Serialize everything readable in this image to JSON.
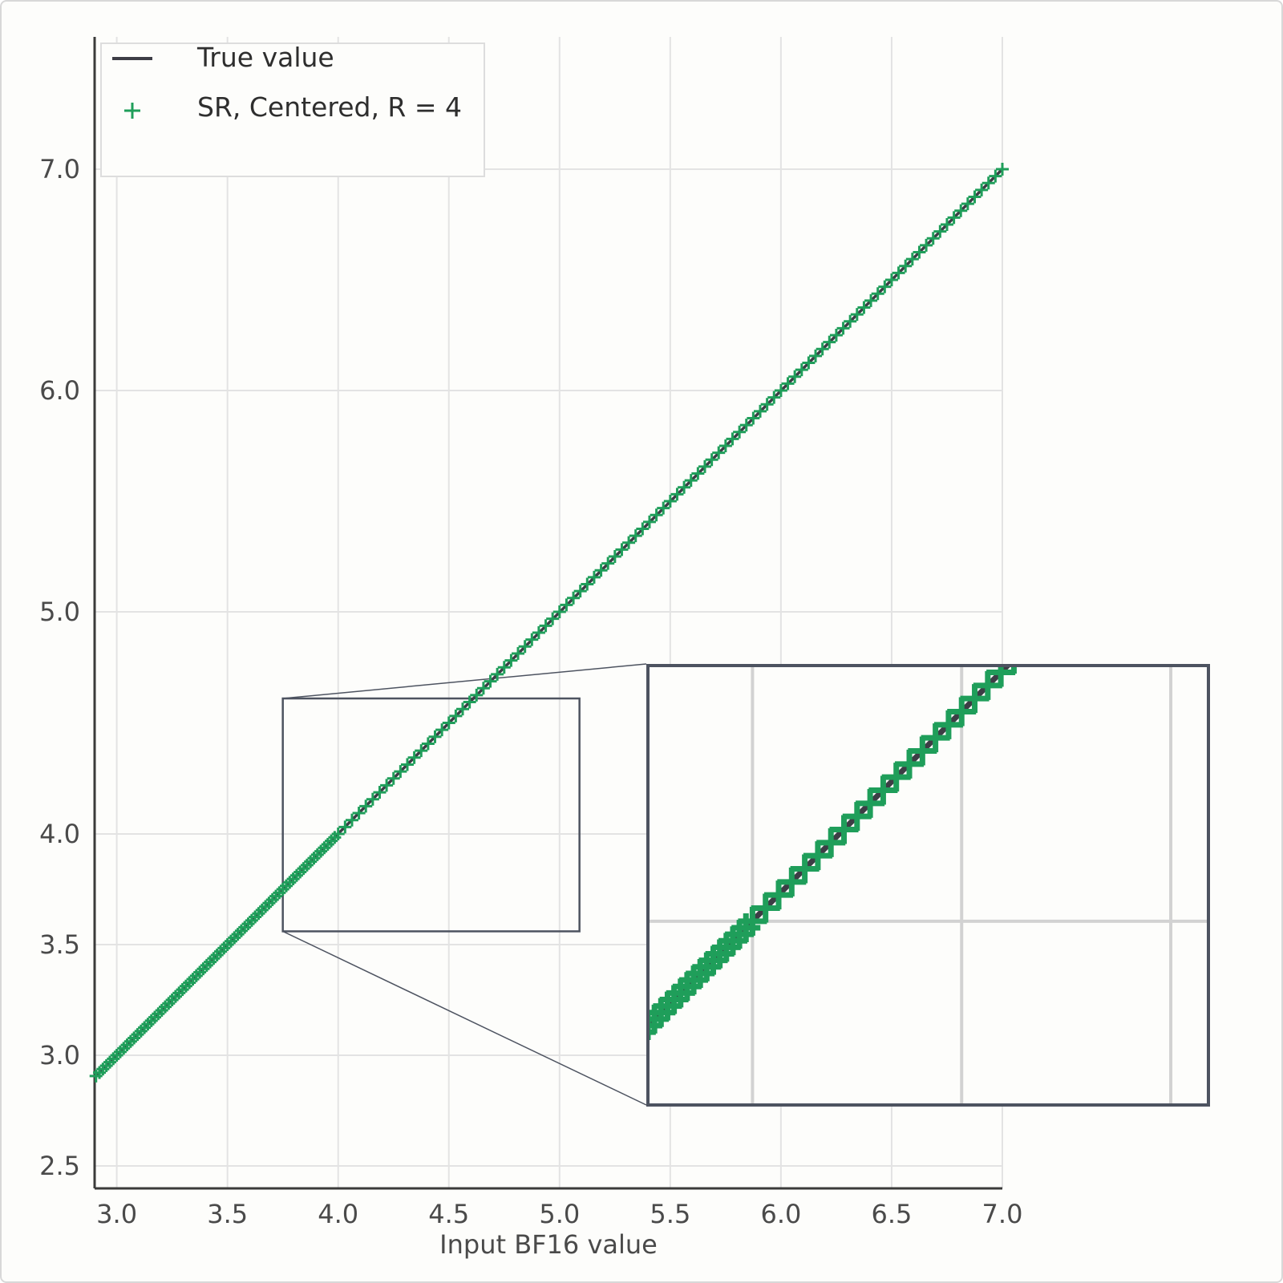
{
  "chart_data": {
    "type": "scatter",
    "title": "",
    "xlabel": "Input BF16 value",
    "ylabel": "",
    "xlim": [
      2.9,
      7.0
    ],
    "ylim": [
      2.4,
      7.45
    ],
    "x_ticks": [
      "3.0",
      "3.5",
      "4.0",
      "4.5",
      "5.0",
      "5.5",
      "6.0",
      "6.5",
      "7.0"
    ],
    "y_ticks": [
      "2.5",
      "3.0",
      "3.5",
      "4.0",
      "5.0",
      "6.0",
      "7.0"
    ],
    "grid": true,
    "legend_position": "top-left",
    "inset": {
      "zoom_region_x": [
        3.75,
        5.09
      ],
      "zoom_region_y": [
        3.56,
        4.61
      ]
    },
    "series": [
      {
        "name": "True value",
        "kind": "line",
        "color": "#3d3d45",
        "x": [
          2.9,
          7.0
        ],
        "y": [
          2.9,
          7.0
        ]
      },
      {
        "name": "SR, Centered, R = 4",
        "kind": "scatter",
        "marker": "plus",
        "color": "#1f9e5a",
        "x_start": 2.90625,
        "x_end": 7.0,
        "step_below_4": 0.015625,
        "step_above_4": 0.03125
      }
    ]
  }
}
